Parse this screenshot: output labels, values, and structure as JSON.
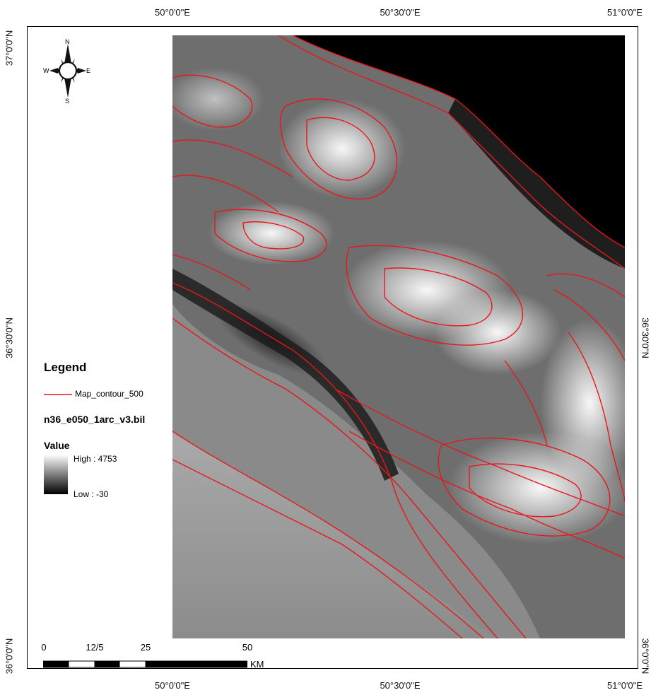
{
  "coords": {
    "top": [
      "50°0'0\"E",
      "50°30'0\"E",
      "51°0'0\"E"
    ],
    "bottom": [
      "50°0'0\"E",
      "50°30'0\"E",
      "51°0'0\"E"
    ],
    "left": [
      "37°0'0\"N",
      "36°30'0\"N",
      "36°0'0\"N"
    ],
    "right": [
      "36°30'0\"N",
      "36°0'0\"N"
    ]
  },
  "north_arrow": {
    "n": "N",
    "s": "S",
    "e": "E",
    "w": "W"
  },
  "legend": {
    "title": "Legend",
    "contour_label": "Map_contour_500",
    "contour_color": "#e8161b",
    "raster_name": "n36_e050_1arc_v3.bil",
    "value_label": "Value",
    "high_label": "High : 4753",
    "low_label": "Low : -30"
  },
  "scale_bar": {
    "ticks": [
      "0",
      "12/5",
      "25",
      "50"
    ],
    "unit": "KM"
  }
}
